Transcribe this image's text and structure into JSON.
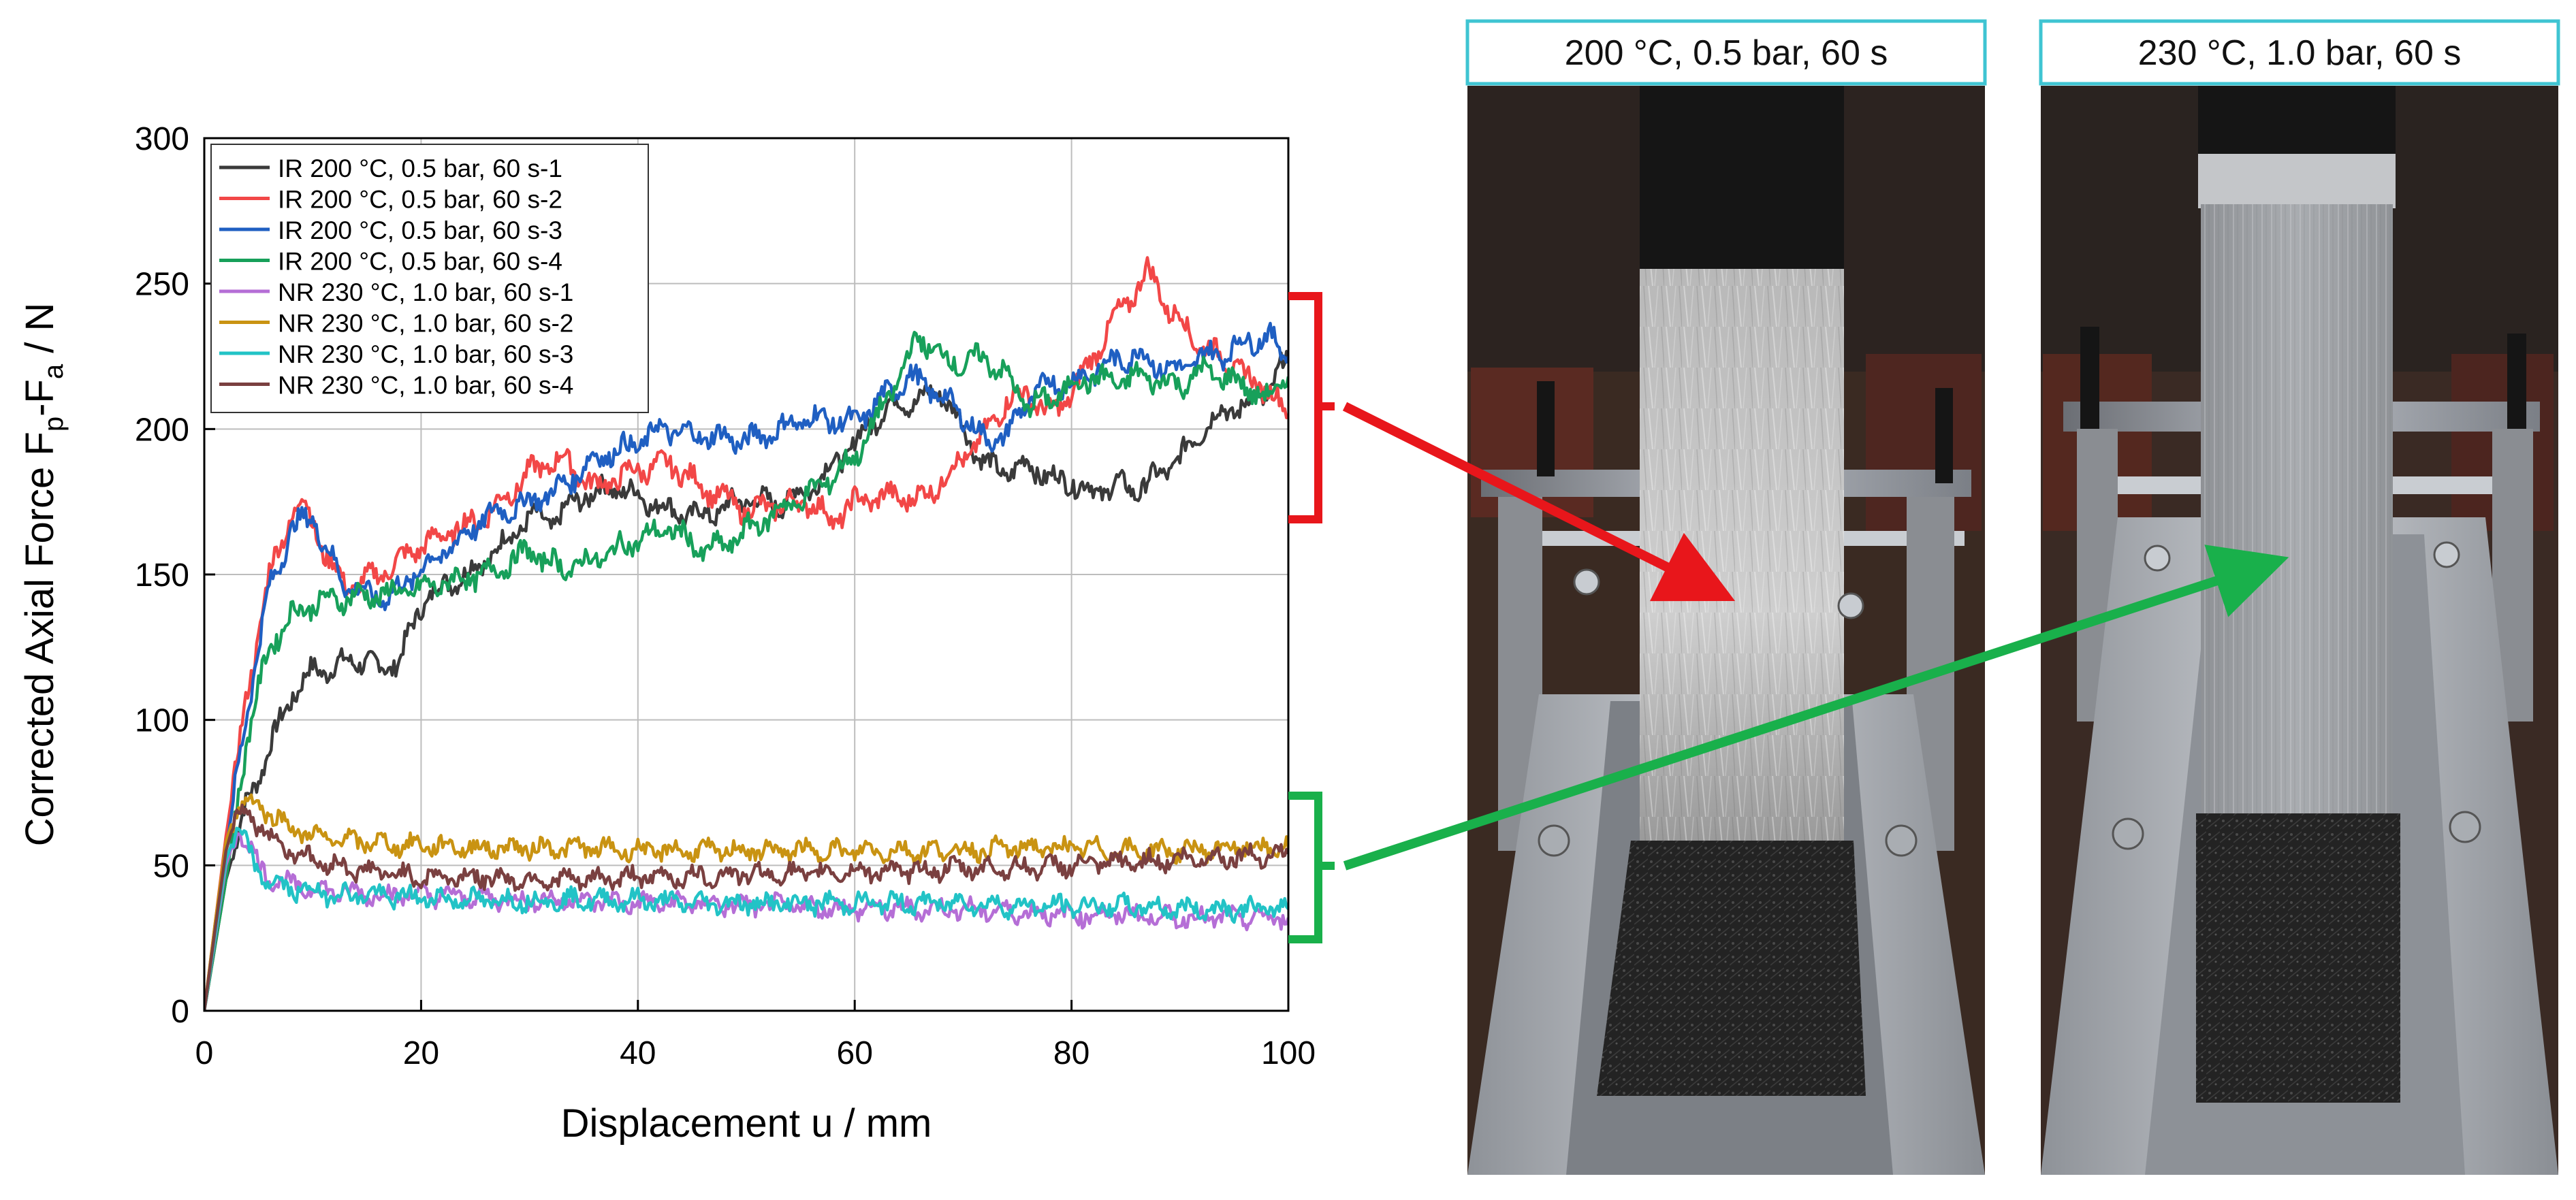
{
  "chart_data": {
    "type": "line",
    "xlabel": "Displacement u / mm",
    "ylabel": "Corrected Axial Force F",
    "ylabel_sub1": "p",
    "ylabel_mid": "-F",
    "ylabel_sub2": "a",
    "ylabel_tail": " / N",
    "xlim": [
      0,
      100
    ],
    "ylim": [
      0,
      300
    ],
    "xticks": [
      0,
      20,
      40,
      60,
      80,
      100
    ],
    "yticks": [
      0,
      50,
      100,
      150,
      200,
      250,
      300
    ],
    "grid": true,
    "legend_position": "top-left",
    "series": [
      {
        "name": "IR 200 °C, 0.5 bar, 60 s-1",
        "color": "#3a3a3a",
        "x": [
          0,
          2,
          4,
          6,
          8,
          10,
          12,
          14,
          16,
          18,
          20,
          22,
          25,
          28,
          30,
          32,
          35,
          38,
          40,
          43,
          46,
          50,
          53,
          56,
          60,
          63,
          66,
          68,
          70,
          72,
          74,
          76,
          78,
          80,
          82,
          84,
          86,
          88,
          90,
          92,
          94,
          96,
          98,
          100
        ],
        "y": [
          0,
          45,
          72,
          90,
          108,
          117,
          118,
          121,
          118,
          120,
          140,
          146,
          152,
          162,
          170,
          168,
          177,
          180,
          177,
          172,
          170,
          176,
          174,
          180,
          195,
          208,
          210,
          213,
          200,
          188,
          185,
          188,
          183,
          182,
          178,
          181,
          179,
          184,
          190,
          200,
          206,
          208,
          212,
          225
        ]
      },
      {
        "name": "IR 200 °C, 0.5 bar, 60 s-2",
        "color": "#f24747",
        "x": [
          0,
          2,
          4,
          6,
          8,
          9,
          10,
          11,
          13,
          15,
          17,
          20,
          23,
          26,
          30,
          33,
          36,
          40,
          43,
          46,
          50,
          53,
          56,
          58,
          60,
          63,
          66,
          68,
          70,
          72,
          74,
          76,
          78,
          80,
          82,
          84,
          86,
          87,
          88,
          89,
          90,
          92,
          94,
          96,
          98,
          100
        ],
        "y": [
          0,
          60,
          110,
          150,
          170,
          176,
          168,
          158,
          146,
          148,
          152,
          160,
          165,
          170,
          185,
          190,
          180,
          186,
          188,
          180,
          172,
          174,
          175,
          168,
          175,
          177,
          176,
          182,
          190,
          198,
          210,
          212,
          205,
          212,
          225,
          238,
          248,
          254,
          250,
          240,
          238,
          228,
          225,
          218,
          214,
          205
        ]
      },
      {
        "name": "IR 200 °C, 0.5 bar, 60 s-3",
        "color": "#1f5fc2",
        "x": [
          0,
          2,
          4,
          6,
          8,
          10,
          11,
          13,
          15,
          17,
          20,
          23,
          26,
          30,
          33,
          36,
          40,
          42,
          45,
          48,
          50,
          53,
          56,
          60,
          63,
          65,
          67,
          70,
          72,
          74,
          76,
          78,
          80,
          82,
          84,
          86,
          88,
          90,
          92,
          94,
          96,
          98,
          100
        ],
        "y": [
          0,
          55,
          105,
          145,
          165,
          171,
          160,
          147,
          143,
          142,
          152,
          160,
          170,
          175,
          180,
          190,
          195,
          200,
          198,
          197,
          196,
          200,
          204,
          202,
          212,
          218,
          214,
          205,
          196,
          198,
          210,
          216,
          216,
          220,
          223,
          226,
          222,
          220,
          225,
          226,
          230,
          232,
          225
        ]
      },
      {
        "name": "IR 200 °C, 0.5 bar, 60 s-4",
        "color": "#17a05a",
        "x": [
          0,
          2,
          4,
          6,
          8,
          10,
          13,
          16,
          20,
          23,
          26,
          30,
          33,
          36,
          40,
          43,
          46,
          48,
          50,
          53,
          56,
          60,
          63,
          65,
          66,
          67,
          68,
          70,
          72,
          74,
          76,
          78,
          80,
          82,
          84,
          86,
          88,
          90,
          92,
          94,
          96,
          98,
          100
        ],
        "y": [
          0,
          45,
          95,
          125,
          136,
          140,
          142,
          143,
          145,
          148,
          150,
          158,
          152,
          155,
          162,
          166,
          158,
          160,
          165,
          172,
          178,
          190,
          210,
          225,
          232,
          228,
          225,
          222,
          225,
          218,
          208,
          210,
          215,
          218,
          216,
          218,
          217,
          215,
          220,
          218,
          215,
          210,
          218
        ]
      },
      {
        "name": "NR 230 °C, 1.0 bar, 60 s-1",
        "color": "#b56ed6",
        "x": [
          0,
          1,
          2,
          3,
          4,
          5,
          6,
          8,
          10,
          12,
          15,
          18,
          20,
          25,
          30,
          35,
          40,
          45,
          50,
          55,
          60,
          65,
          70,
          75,
          80,
          85,
          90,
          95,
          100
        ],
        "y": [
          0,
          25,
          50,
          62,
          58,
          50,
          46,
          43,
          42,
          41,
          40,
          40,
          40,
          39,
          38,
          38,
          37,
          37,
          36,
          36,
          35,
          35,
          35,
          34,
          33,
          33,
          32,
          32,
          32
        ]
      },
      {
        "name": "NR 230 °C, 1.0 bar, 60 s-2",
        "color": "#c99312",
        "x": [
          0,
          1,
          2,
          3,
          4,
          5,
          6,
          8,
          10,
          12,
          15,
          18,
          20,
          25,
          30,
          35,
          40,
          45,
          50,
          55,
          60,
          65,
          70,
          75,
          80,
          85,
          90,
          95,
          100
        ],
        "y": [
          0,
          30,
          58,
          70,
          72,
          71,
          68,
          63,
          60,
          59,
          58,
          57,
          57,
          56,
          56,
          56,
          55,
          55,
          55,
          55,
          55,
          55,
          55,
          56,
          56,
          55,
          55,
          56,
          56
        ]
      },
      {
        "name": "NR 230 °C, 1.0 bar, 60 s-3",
        "color": "#22c3c6",
        "x": [
          0,
          1,
          2,
          3,
          4,
          5,
          6,
          8,
          10,
          12,
          15,
          18,
          20,
          25,
          30,
          35,
          40,
          45,
          50,
          55,
          60,
          65,
          70,
          75,
          80,
          85,
          90,
          95,
          100
        ],
        "y": [
          0,
          26,
          52,
          62,
          56,
          48,
          44,
          42,
          41,
          40,
          40,
          39,
          39,
          38,
          38,
          38,
          38,
          37,
          37,
          37,
          37,
          37,
          37,
          36,
          36,
          36,
          35,
          35,
          35
        ]
      },
      {
        "name": "NR 230 °C, 1.0 bar, 60 s-4",
        "color": "#7a4040",
        "x": [
          0,
          1,
          2,
          3,
          4,
          5,
          6,
          8,
          10,
          12,
          15,
          18,
          20,
          25,
          30,
          35,
          40,
          45,
          50,
          55,
          60,
          65,
          70,
          75,
          80,
          85,
          90,
          95,
          100
        ],
        "y": [
          0,
          28,
          55,
          68,
          68,
          64,
          60,
          55,
          52,
          50,
          48,
          47,
          46,
          46,
          45,
          45,
          46,
          46,
          47,
          47,
          48,
          48,
          49,
          49,
          50,
          51,
          52,
          53,
          54
        ]
      }
    ]
  },
  "photos": {
    "left_label": "200 °C, 0.5 bar, 60 s",
    "right_label": "230 °C, 1.0 bar, 60 s"
  },
  "annotations": {
    "upper_bracket_color": "#e8161b",
    "lower_bracket_color": "#19b04b",
    "photo_label_border_color": "#3fc4d2"
  }
}
